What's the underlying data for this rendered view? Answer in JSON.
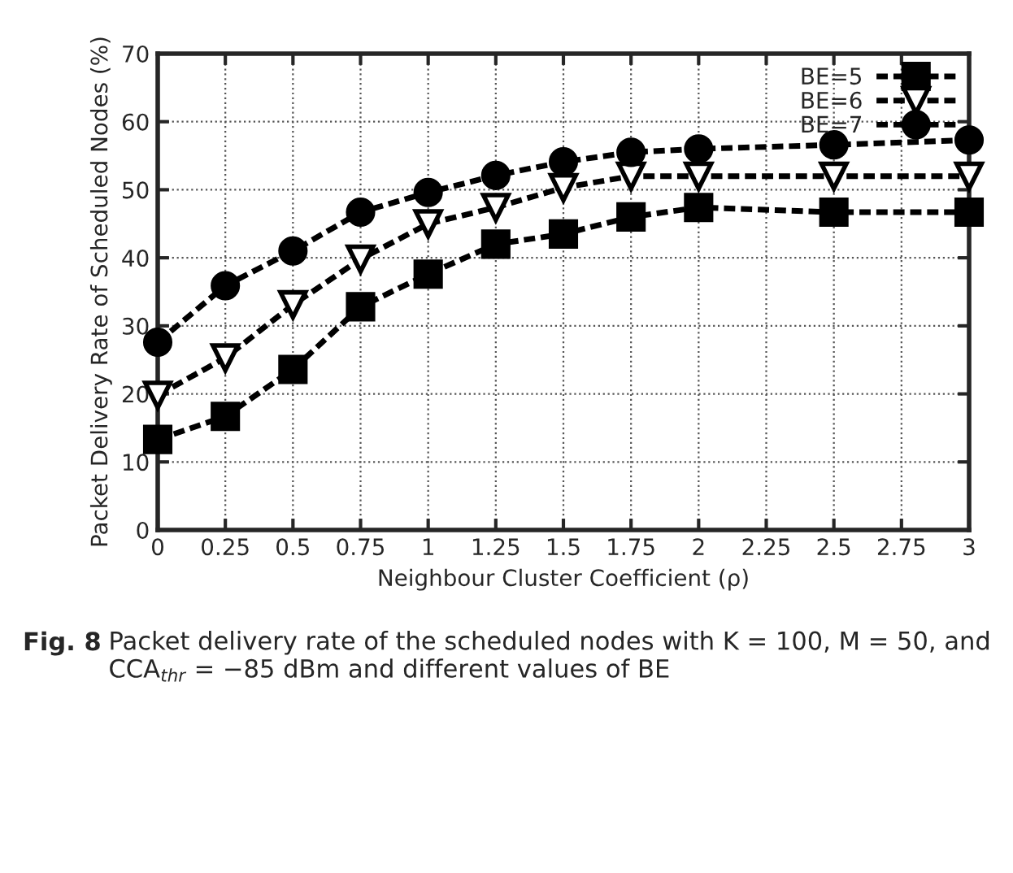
{
  "chart_data": {
    "type": "line",
    "xlabel": "Neighbour Cluster Coefficient (ρ)",
    "ylabel": "Packet Delivery Rate of Scheduled Nodes (%)",
    "x": [
      0,
      0.25,
      0.5,
      0.75,
      1,
      1.25,
      1.5,
      1.75,
      2,
      2.5,
      3
    ],
    "series": [
      {
        "name": "BE=5",
        "color": "#000000",
        "marker": "square",
        "values": [
          13.3,
          16.7,
          23.6,
          32.8,
          37.6,
          42.0,
          43.5,
          46.0,
          47.4,
          46.7,
          46.7
        ]
      },
      {
        "name": "BE=6",
        "color": "#000000",
        "marker": "triangle",
        "values": [
          19.8,
          25.3,
          33.1,
          39.8,
          45.0,
          47.4,
          50.3,
          52.0,
          52.0,
          52.0,
          52.0
        ]
      },
      {
        "name": "BE=7",
        "color": "#000000",
        "marker": "circle",
        "values": [
          27.6,
          35.9,
          41.0,
          46.7,
          49.6,
          52.1,
          54.1,
          55.5,
          56.0,
          56.6,
          57.3
        ]
      }
    ],
    "xlim": [
      0,
      3
    ],
    "xticks": [
      0,
      0.25,
      0.5,
      0.75,
      1,
      1.25,
      1.5,
      1.75,
      2,
      2.25,
      2.5,
      2.75,
      3
    ],
    "ylim": [
      0,
      70
    ],
    "yticks": [
      0,
      10,
      20,
      30,
      40,
      50,
      60,
      70
    ],
    "grid": true,
    "legend": "top right",
    "line_style": "dashed",
    "annotations": [
      "Fig. 8",
      "Packet delivery rate of the scheduled nodes with K = 100, M = 50, and CCA$_{thr}$ = −85 dBm and different values of BE"
    ]
  }
}
